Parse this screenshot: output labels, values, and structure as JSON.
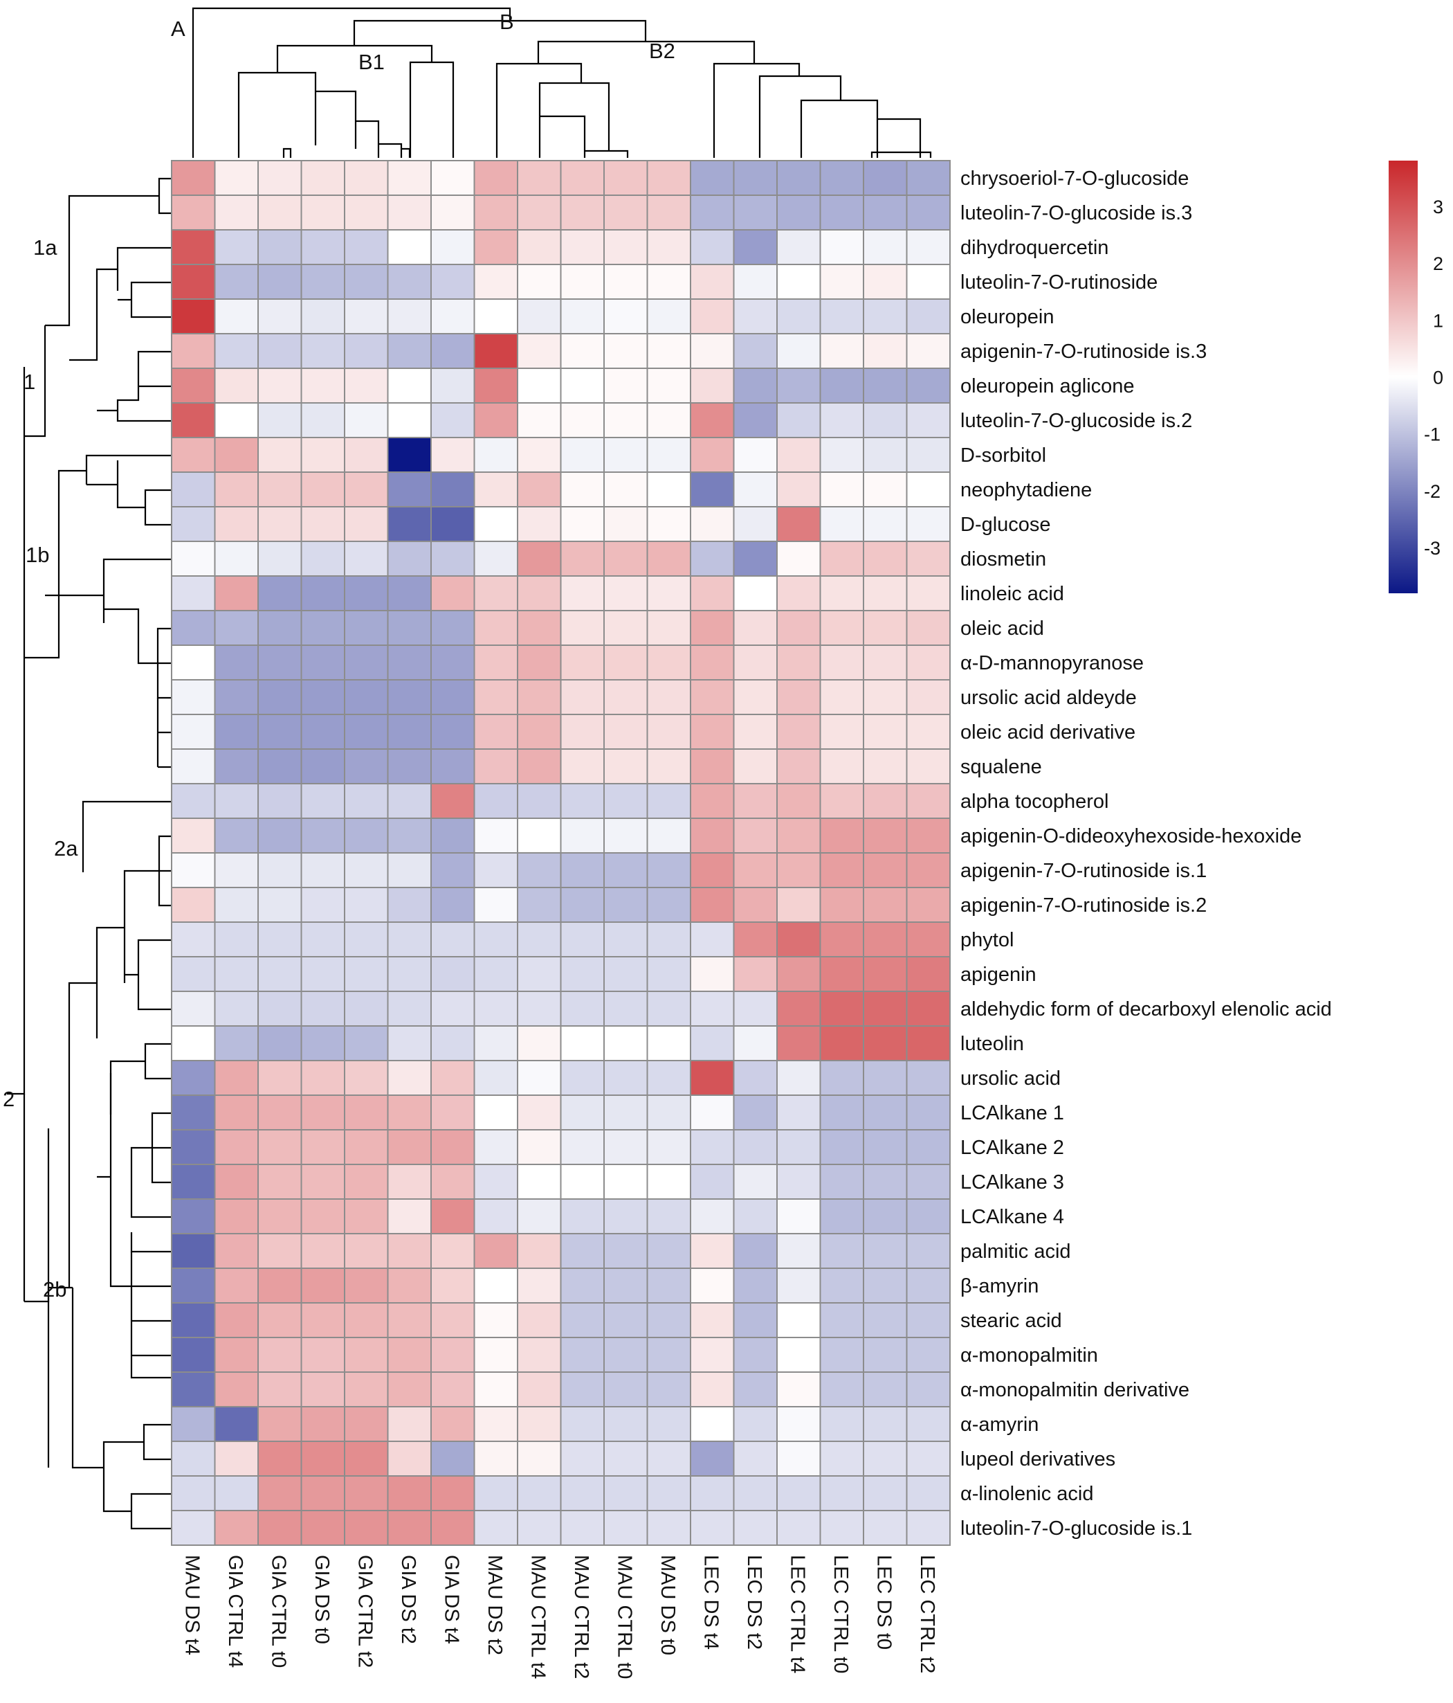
{
  "chart_data": {
    "type": "heatmap",
    "title": "",
    "columns": [
      "MAU DS t4",
      "GIA CTRL t4",
      "GIA CTRL t0",
      "GIA DS t0",
      "GIA CTRL t2",
      "GIA DS t2",
      "GIA DS t4",
      "MAU DS t2",
      "MAU CTRL t4",
      "MAU CTRL t2",
      "MAU CTRL t0",
      "MAU DS t0",
      "LEC DS t4",
      "LEC DS t2",
      "LEC CTRL t4",
      "LEC CTRL t0",
      "LEC DS t0",
      "LEC CTRL t2"
    ],
    "rows": [
      "chrysoeriol-7-O-glucoside",
      "luteolin-7-O-glucoside is.3",
      "dihydroquercetin",
      "luteolin-7-O-rutinoside",
      "oleuropein",
      "apigenin-7-O-rutinoside is.3",
      "oleuropein aglicone",
      "luteolin-7-O-glucoside is.2",
      "D-sorbitol",
      "neophytadiene",
      "D-glucose",
      "diosmetin",
      "linoleic acid",
      "oleic acid",
      "α-D-mannopyranose",
      "ursolic acid aldeyde",
      "oleic acid derivative",
      "squalene",
      "alpha tocopherol",
      "apigenin-O-dideoxyhexoside-hexoxide",
      "apigenin-7-O-rutinoside is.1",
      "apigenin-7-O-rutinoside is.2",
      "phytol",
      "apigenin",
      "aldehydic form of decarboxyl elenolic acid",
      "luteolin",
      "ursolic acid",
      "LCAlkane 1",
      "LCAlkane 2",
      "LCAlkane 3",
      "LCAlkane 4",
      "palmitic acid",
      "β-amyrin",
      "stearic acid",
      "α-monopalmitin",
      "α-monopalmitin derivative",
      "α-amyrin",
      "lupeol derivatives",
      "α-linolenic acid",
      "luteolin-7-O-glucoside is.1"
    ],
    "values": [
      [
        1.8,
        0.3,
        0.4,
        0.5,
        0.5,
        0.3,
        0.1,
        1.4,
        1.0,
        1.0,
        1.0,
        1.0,
        -1.4,
        -1.4,
        -1.4,
        -1.4,
        -1.5,
        -1.4
      ],
      [
        1.3,
        0.4,
        0.5,
        0.5,
        0.5,
        0.4,
        0.2,
        1.2,
        0.9,
        0.9,
        0.9,
        0.9,
        -1.2,
        -1.2,
        -1.3,
        -1.3,
        -1.3,
        -1.3
      ],
      [
        2.9,
        -0.7,
        -0.9,
        -0.8,
        -0.8,
        0.0,
        -0.2,
        1.3,
        0.5,
        0.4,
        0.4,
        0.4,
        -0.7,
        -1.6,
        -0.3,
        -0.1,
        -0.2,
        -0.2
      ],
      [
        3.0,
        -1.1,
        -1.2,
        -1.1,
        -1.1,
        -1.0,
        -0.8,
        0.3,
        0.1,
        0.1,
        0.1,
        0.1,
        0.6,
        -0.2,
        0.0,
        0.2,
        0.3,
        0.0
      ],
      [
        3.5,
        -0.2,
        -0.3,
        -0.4,
        -0.3,
        -0.3,
        -0.2,
        0.0,
        -0.3,
        -0.2,
        -0.1,
        -0.2,
        0.7,
        -0.5,
        -0.6,
        -0.6,
        -0.6,
        -0.7
      ],
      [
        1.3,
        -0.7,
        -0.8,
        -0.7,
        -0.8,
        -1.1,
        -1.3,
        3.3,
        0.3,
        0.1,
        0.1,
        0.1,
        0.2,
        -0.9,
        -0.2,
        0.2,
        0.3,
        0.2
      ],
      [
        2.1,
        0.5,
        0.4,
        0.4,
        0.4,
        0.0,
        -0.4,
        2.2,
        0.0,
        0.0,
        0.1,
        0.1,
        0.6,
        -1.4,
        -1.2,
        -1.4,
        -1.4,
        -1.4
      ],
      [
        2.8,
        0.0,
        -0.4,
        -0.4,
        -0.2,
        0.0,
        -0.6,
        1.7,
        0.1,
        0.1,
        0.1,
        0.1,
        2.0,
        -1.5,
        -0.7,
        -0.5,
        -0.6,
        -0.5
      ],
      [
        1.3,
        1.5,
        0.5,
        0.5,
        0.6,
        -3.8,
        0.4,
        -0.2,
        0.3,
        -0.2,
        -0.2,
        -0.2,
        1.3,
        -0.1,
        0.6,
        -0.3,
        -0.4,
        -0.4
      ],
      [
        -0.8,
        1.0,
        0.9,
        1.0,
        1.0,
        -1.9,
        -2.1,
        0.5,
        1.2,
        0.1,
        0.1,
        0.0,
        -2.1,
        -0.2,
        0.6,
        0.1,
        0.1,
        0.0
      ],
      [
        -0.7,
        0.7,
        0.6,
        0.6,
        0.6,
        -2.5,
        -2.6,
        0.0,
        0.4,
        0.1,
        0.2,
        0.1,
        0.2,
        -0.3,
        2.3,
        -0.2,
        -0.2,
        -0.2
      ],
      [
        -0.1,
        -0.2,
        -0.4,
        -0.6,
        -0.5,
        -1.0,
        -0.9,
        -0.3,
        1.8,
        1.2,
        1.2,
        1.3,
        -1.0,
        -1.8,
        0.1,
        1.0,
        1.0,
        0.9
      ],
      [
        -0.5,
        1.6,
        -1.6,
        -1.6,
        -1.6,
        -1.6,
        1.3,
        0.9,
        1.0,
        0.4,
        0.4,
        0.4,
        1.0,
        0.0,
        0.7,
        0.5,
        0.5,
        0.5
      ],
      [
        -1.3,
        -1.2,
        -1.4,
        -1.4,
        -1.4,
        -1.4,
        -1.4,
        1.0,
        1.3,
        0.5,
        0.5,
        0.5,
        1.5,
        0.6,
        1.1,
        0.8,
        0.8,
        0.9
      ],
      [
        0.0,
        -1.5,
        -1.5,
        -1.5,
        -1.5,
        -1.5,
        -1.5,
        1.0,
        1.4,
        0.8,
        0.8,
        0.8,
        1.3,
        0.6,
        1.0,
        0.6,
        0.6,
        0.7
      ],
      [
        -0.2,
        -1.5,
        -1.6,
        -1.6,
        -1.6,
        -1.6,
        -1.6,
        1.0,
        1.2,
        0.6,
        0.6,
        0.6,
        1.2,
        0.5,
        1.1,
        0.5,
        0.5,
        0.6
      ],
      [
        -0.2,
        -1.6,
        -1.6,
        -1.6,
        -1.6,
        -1.6,
        -1.6,
        1.1,
        1.3,
        0.6,
        0.6,
        0.6,
        1.3,
        0.5,
        1.1,
        0.5,
        0.5,
        0.5
      ],
      [
        -0.2,
        -1.5,
        -1.6,
        -1.6,
        -1.5,
        -1.5,
        -1.5,
        1.1,
        1.4,
        0.5,
        0.5,
        0.5,
        1.5,
        0.5,
        1.1,
        0.5,
        0.5,
        0.5
      ],
      [
        -0.7,
        -0.7,
        -0.8,
        -0.7,
        -0.7,
        -0.7,
        2.2,
        -0.8,
        -0.8,
        -0.7,
        -0.7,
        -0.7,
        1.5,
        1.1,
        1.3,
        1.0,
        1.1,
        1.1
      ],
      [
        0.5,
        -1.2,
        -1.3,
        -1.2,
        -1.2,
        -1.1,
        -1.4,
        -0.1,
        0.0,
        -0.2,
        -0.2,
        -0.2,
        1.6,
        1.1,
        1.3,
        1.7,
        1.7,
        1.7
      ],
      [
        -0.1,
        -0.3,
        -0.4,
        -0.4,
        -0.4,
        -0.4,
        -1.3,
        -0.5,
        -1.0,
        -1.1,
        -1.1,
        -1.1,
        1.9,
        1.3,
        1.3,
        1.7,
        1.7,
        1.7
      ],
      [
        0.8,
        -0.4,
        -0.4,
        -0.5,
        -0.5,
        -0.8,
        -1.3,
        -0.1,
        -1.0,
        -1.1,
        -1.1,
        -1.1,
        1.9,
        1.4,
        0.8,
        1.5,
        1.5,
        1.5
      ],
      [
        -0.5,
        -0.6,
        -0.6,
        -0.6,
        -0.6,
        -0.6,
        -0.6,
        -0.6,
        -0.6,
        -0.6,
        -0.6,
        -0.6,
        -0.5,
        2.0,
        2.5,
        2.0,
        2.0,
        2.0
      ],
      [
        -0.6,
        -0.6,
        -0.6,
        -0.6,
        -0.6,
        -0.6,
        -0.7,
        -0.6,
        -0.5,
        -0.6,
        -0.6,
        -0.6,
        0.2,
        1.1,
        1.8,
        2.2,
        2.2,
        2.3
      ],
      [
        -0.3,
        -0.6,
        -0.7,
        -0.7,
        -0.7,
        -0.6,
        -0.5,
        -0.5,
        -0.5,
        -0.6,
        -0.6,
        -0.6,
        -0.5,
        -0.5,
        2.3,
        2.6,
        2.6,
        2.6
      ],
      [
        0.0,
        -1.1,
        -1.3,
        -1.2,
        -1.1,
        -0.5,
        -0.6,
        -0.3,
        0.2,
        0.0,
        0.0,
        0.0,
        -0.6,
        -0.2,
        2.3,
        2.7,
        2.7,
        2.7
      ],
      [
        -1.7,
        1.5,
        1.0,
        1.0,
        0.9,
        0.4,
        1.0,
        -0.4,
        -0.1,
        -0.6,
        -0.6,
        -0.6,
        3.0,
        -0.8,
        -0.3,
        -1.0,
        -1.0,
        -1.0
      ],
      [
        -2.1,
        1.5,
        1.4,
        1.4,
        1.4,
        1.3,
        1.1,
        0.0,
        0.4,
        -0.4,
        -0.4,
        -0.4,
        -0.1,
        -1.1,
        -0.5,
        -1.1,
        -1.1,
        -1.1
      ],
      [
        -2.2,
        1.4,
        1.2,
        1.2,
        1.3,
        1.5,
        1.6,
        -0.3,
        0.2,
        -0.3,
        -0.3,
        -0.3,
        -0.6,
        -0.7,
        -0.6,
        -1.1,
        -1.1,
        -1.1
      ],
      [
        -2.3,
        1.6,
        1.2,
        1.2,
        1.3,
        0.7,
        1.2,
        -0.5,
        0.0,
        0.0,
        0.0,
        0.0,
        -0.7,
        -0.3,
        -0.5,
        -1.0,
        -1.0,
        -1.0
      ],
      [
        -2.0,
        1.5,
        1.3,
        1.3,
        1.3,
        0.4,
        2.0,
        -0.5,
        -0.3,
        -0.6,
        -0.6,
        -0.6,
        -0.3,
        -0.6,
        -0.1,
        -1.1,
        -1.1,
        -1.1
      ],
      [
        -2.5,
        1.4,
        1.0,
        1.0,
        1.0,
        1.0,
        0.8,
        1.6,
        0.8,
        -0.9,
        -0.9,
        -0.9,
        0.5,
        -1.2,
        -0.3,
        -0.9,
        -0.9,
        -0.9
      ],
      [
        -2.1,
        1.4,
        1.7,
        1.7,
        1.6,
        1.3,
        0.8,
        0.0,
        0.4,
        -0.9,
        -0.9,
        -0.9,
        0.1,
        -1.1,
        -0.3,
        -0.9,
        -0.9,
        -0.9
      ],
      [
        -2.4,
        1.6,
        1.3,
        1.3,
        1.3,
        1.2,
        1.0,
        0.1,
        0.7,
        -0.9,
        -0.9,
        -0.9,
        0.5,
        -1.1,
        0.0,
        -0.9,
        -0.9,
        -0.9
      ],
      [
        -2.4,
        1.5,
        1.1,
        1.1,
        1.2,
        1.3,
        1.1,
        0.1,
        0.6,
        -0.9,
        -0.9,
        -0.9,
        0.4,
        -1.0,
        0.0,
        -0.9,
        -0.9,
        -0.9
      ],
      [
        -2.3,
        1.5,
        1.1,
        1.1,
        1.2,
        1.3,
        1.1,
        0.1,
        0.7,
        -0.9,
        -0.9,
        -0.9,
        0.5,
        -1.0,
        0.1,
        -0.9,
        -0.9,
        -0.9
      ],
      [
        -1.2,
        -2.4,
        1.5,
        1.6,
        1.6,
        0.6,
        1.3,
        0.3,
        0.5,
        -0.6,
        -0.6,
        -0.6,
        0.0,
        -0.6,
        -0.1,
        -0.6,
        -0.6,
        -0.6
      ],
      [
        -0.6,
        0.6,
        2.0,
        2.0,
        2.0,
        0.7,
        -1.4,
        0.2,
        0.2,
        -0.5,
        -0.5,
        -0.5,
        -1.5,
        -0.5,
        -0.1,
        -0.5,
        -0.5,
        -0.5
      ],
      [
        -0.6,
        -0.6,
        1.8,
        1.8,
        1.8,
        1.9,
        1.9,
        -0.6,
        -0.6,
        -0.6,
        -0.6,
        -0.6,
        -0.6,
        -0.6,
        -0.6,
        -0.6,
        -0.6,
        -0.6
      ],
      [
        -0.5,
        1.5,
        1.9,
        1.9,
        1.9,
        1.9,
        1.9,
        -0.5,
        -0.5,
        -0.5,
        -0.5,
        -0.5,
        -0.5,
        -0.5,
        -0.5,
        -0.5,
        -0.5,
        -0.5
      ]
    ],
    "color_scale": {
      "min": -3.8,
      "max": 3.8,
      "low_color": "#0b1786",
      "mid_color": "#ffffff",
      "high_color": "#c9272b",
      "ticks": [
        "3",
        "2",
        "1",
        "0",
        "-1",
        "-2",
        "-3"
      ]
    },
    "cell_border_color": "#8c8c8c",
    "column_clusters": [
      "A",
      "B",
      "B1",
      "B2"
    ],
    "row_clusters": [
      "1a",
      "1",
      "1b",
      "2a",
      "2",
      "2b"
    ]
  }
}
